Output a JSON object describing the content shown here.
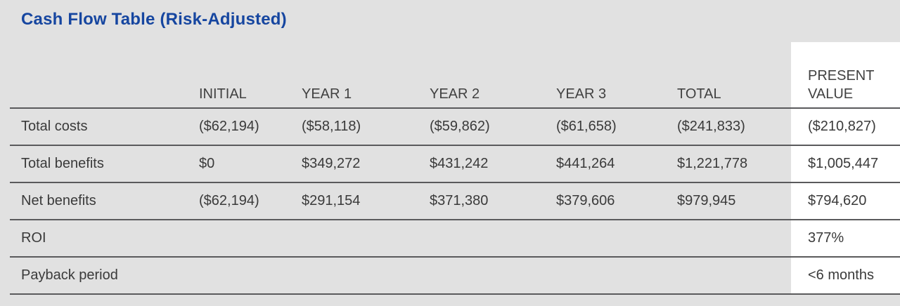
{
  "title": "Cash Flow Table (Risk-Adjusted)",
  "colors": {
    "background": "#e1e1e1",
    "highlight_column_background": "#ffffff",
    "title_text": "#1646a0",
    "rule_line": "#5a5a5c",
    "body_text": "#3a3a3a"
  },
  "table": {
    "columns": [
      "",
      "INITIAL",
      "YEAR 1",
      "YEAR 2",
      "YEAR 3",
      "TOTAL",
      "PRESENT VALUE"
    ],
    "rows": [
      {
        "label": "Total costs",
        "values": [
          "($62,194)",
          "($58,118)",
          "($59,862)",
          "($61,658)",
          "($241,833)",
          "($210,827)"
        ]
      },
      {
        "label": "Total benefits",
        "values": [
          "$0",
          "$349,272",
          "$431,242",
          "$441,264",
          "$1,221,778",
          "$1,005,447"
        ]
      },
      {
        "label": "Net benefits",
        "values": [
          "($62,194)",
          "$291,154",
          "$371,380",
          "$379,606",
          "$979,945",
          "$794,620"
        ]
      },
      {
        "label": "ROI",
        "values": [
          "",
          "",
          "",
          "",
          "",
          "377%"
        ]
      },
      {
        "label": "Payback period",
        "values": [
          "",
          "",
          "",
          "",
          "",
          "<6 months"
        ]
      }
    ]
  }
}
